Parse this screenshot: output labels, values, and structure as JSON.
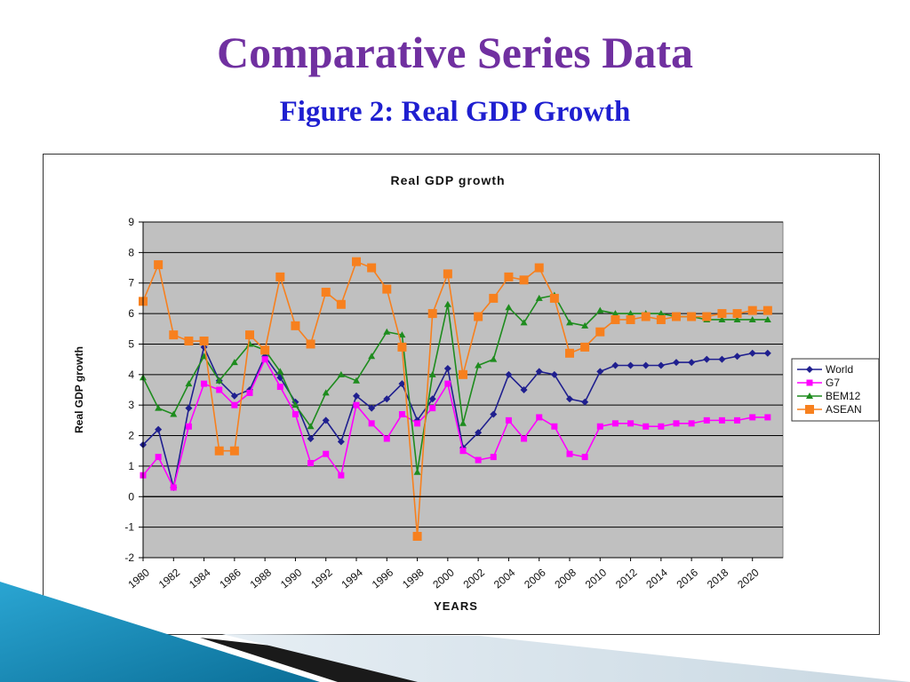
{
  "slide": {
    "title": "Comparative Series Data",
    "subtitle": "Figure 2: Real GDP Growth"
  },
  "chart_data": {
    "type": "line",
    "title": "Real GDP growth",
    "xlabel": "YEARS",
    "ylabel": "Real GDP growth",
    "ylim": [
      -2,
      9
    ],
    "yticks": [
      -2,
      -1,
      0,
      1,
      2,
      3,
      4,
      5,
      6,
      7,
      8,
      9
    ],
    "x": [
      1980,
      1981,
      1982,
      1983,
      1984,
      1985,
      1986,
      1987,
      1988,
      1989,
      1990,
      1991,
      1992,
      1993,
      1994,
      1995,
      1996,
      1997,
      1998,
      1999,
      2000,
      2001,
      2002,
      2003,
      2004,
      2005,
      2006,
      2007,
      2008,
      2009,
      2010,
      2011,
      2012,
      2013,
      2014,
      2015,
      2016,
      2017,
      2018,
      2019,
      2020,
      2021
    ],
    "xticks": [
      1980,
      1982,
      1984,
      1986,
      1988,
      1990,
      1992,
      1994,
      1996,
      1998,
      2000,
      2002,
      2004,
      2006,
      2008,
      2010,
      2012,
      2014,
      2016,
      2018,
      2020
    ],
    "grid": "horizontal",
    "legend_position": "right",
    "plot_background": "#c0c0c0",
    "series": [
      {
        "name": "World",
        "color": "#1f1f8f",
        "marker": "diamond",
        "values": [
          1.7,
          2.2,
          0.3,
          2.9,
          4.9,
          3.8,
          3.3,
          3.5,
          4.6,
          3.9,
          3.1,
          1.9,
          2.5,
          1.8,
          3.3,
          2.9,
          3.2,
          3.7,
          2.5,
          3.2,
          4.2,
          1.6,
          2.1,
          2.7,
          4.0,
          3.5,
          4.1,
          4.0,
          3.2,
          3.1,
          4.1,
          4.3,
          4.3,
          4.3,
          4.3,
          4.4,
          4.4,
          4.5,
          4.5,
          4.6,
          4.7,
          4.7
        ]
      },
      {
        "name": "G7",
        "color": "#ff00ff",
        "marker": "square",
        "values": [
          0.7,
          1.3,
          0.3,
          2.3,
          3.7,
          3.5,
          3.0,
          3.4,
          4.5,
          3.6,
          2.7,
          1.1,
          1.4,
          0.7,
          3.0,
          2.4,
          1.9,
          2.7,
          2.4,
          2.9,
          3.7,
          1.5,
          1.2,
          1.3,
          2.5,
          1.9,
          2.6,
          2.3,
          1.4,
          1.3,
          2.3,
          2.4,
          2.4,
          2.3,
          2.3,
          2.4,
          2.4,
          2.5,
          2.5,
          2.5,
          2.6,
          2.6
        ]
      },
      {
        "name": "BEM12",
        "color": "#1e8c1e",
        "marker": "triangle",
        "values": [
          3.9,
          2.9,
          2.7,
          3.7,
          4.6,
          3.8,
          4.4,
          5.0,
          4.8,
          4.1,
          3.0,
          2.3,
          3.4,
          4.0,
          3.8,
          4.6,
          5.4,
          5.3,
          0.8,
          4.0,
          6.3,
          2.4,
          4.3,
          4.5,
          6.2,
          5.7,
          6.5,
          6.6,
          5.7,
          5.6,
          6.1,
          6.0,
          6.0,
          6.0,
          6.0,
          5.9,
          5.9,
          5.8,
          5.8,
          5.8,
          5.8,
          5.8
        ]
      },
      {
        "name": "ASEAN",
        "color": "#f7801e",
        "marker": "square",
        "values": [
          6.4,
          7.6,
          5.3,
          5.1,
          5.1,
          1.5,
          1.5,
          5.3,
          4.8,
          7.2,
          5.6,
          5.0,
          6.7,
          6.3,
          7.7,
          7.5,
          6.8,
          4.9,
          -1.3,
          6.0,
          7.3,
          4.0,
          5.9,
          6.5,
          7.2,
          7.1,
          7.5,
          6.5,
          4.7,
          4.9,
          5.4,
          5.8,
          5.8,
          5.9,
          5.8,
          5.9,
          5.9,
          5.9,
          6.0,
          6.0,
          6.1,
          6.1
        ]
      }
    ]
  }
}
